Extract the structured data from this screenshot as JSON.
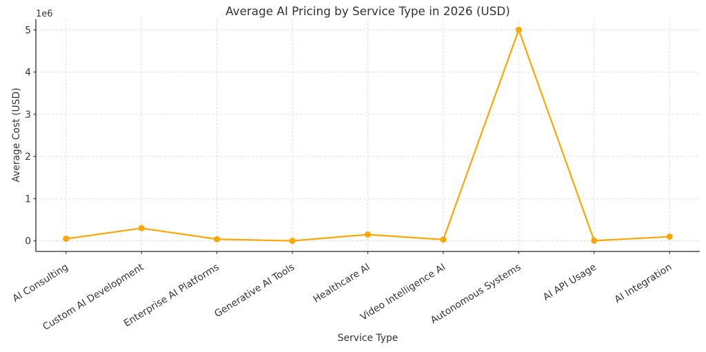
{
  "chart_data": {
    "type": "line",
    "title": "Average AI Pricing by Service Type in 2026 (USD)",
    "xlabel": "Service Type",
    "ylabel": "Average Cost (USD)",
    "y_scale_label": "1e6",
    "categories": [
      "AI Consulting",
      "Custom AI Development",
      "Enterprise AI Platforms",
      "Generative AI Tools",
      "Healthcare AI",
      "Video Intelligence AI",
      "Autonomous Systems",
      "AI API Usage",
      "AI Integration"
    ],
    "values": [
      50000,
      300000,
      40000,
      1000,
      150000,
      30000,
      5000000,
      5000,
      100000
    ],
    "yticks": [
      0,
      1000000,
      2000000,
      3000000,
      4000000,
      5000000
    ],
    "ytick_labels": [
      "0",
      "1",
      "2",
      "3",
      "4",
      "5"
    ],
    "ylim": [
      -250000,
      5250000
    ],
    "xlim": [
      -0.4,
      8.4
    ],
    "grid": true,
    "legend_position": "none",
    "line_color": "#FFA500",
    "marker_color": "#FFA500",
    "grid_color": "#dedede",
    "axis_color": "#262626",
    "text_color": "#333333",
    "background_color": "#ffffff",
    "x_tick_rotation_deg": 32
  }
}
